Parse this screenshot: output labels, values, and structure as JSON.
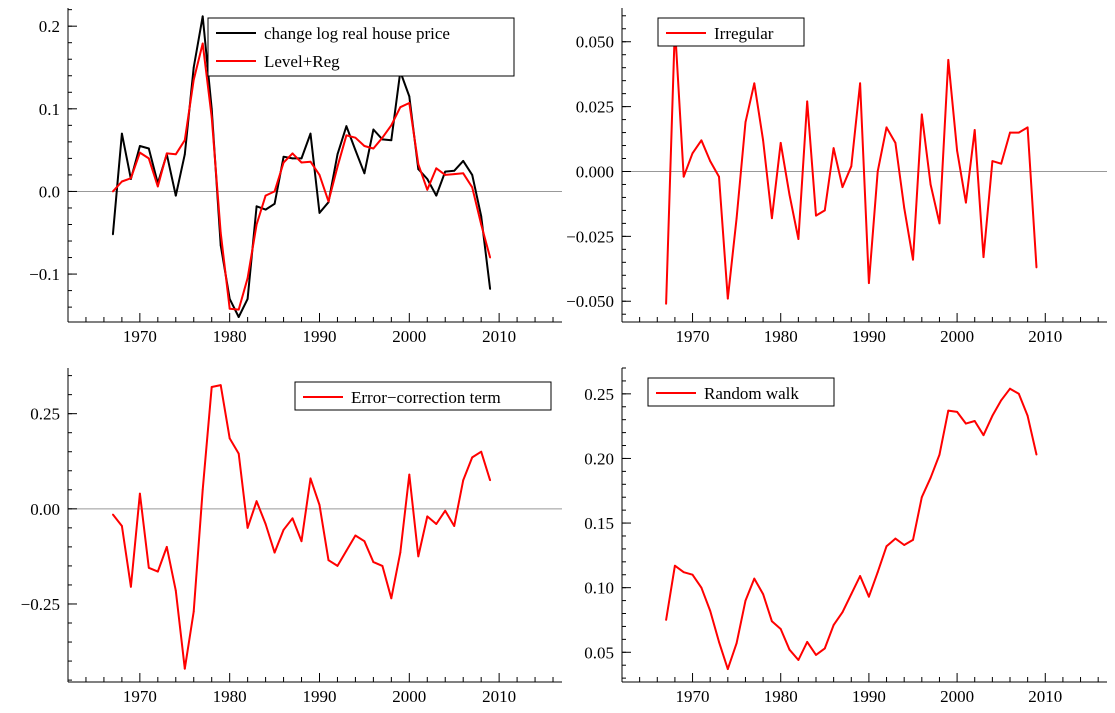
{
  "chart_data": [
    {
      "type": "line",
      "title": "",
      "xlabel": "",
      "ylabel": "",
      "xlim": [
        1962,
        2017
      ],
      "ylim": [
        -0.158,
        0.222
      ],
      "xticks": [
        1970,
        1980,
        1990,
        2000,
        2010
      ],
      "xtick_labels": [
        "1970",
        "1980",
        "1990",
        "2000",
        "2010"
      ],
      "yticks": [
        -0.1,
        0.0,
        0.1,
        0.2
      ],
      "ytick_labels": [
        "−0.1",
        "0.0",
        "0.1",
        "0.2"
      ],
      "zero_line": true,
      "grid": false,
      "legend_position": "top-right",
      "x": [
        1967,
        1968,
        1969,
        1970,
        1971,
        1972,
        1973,
        1974,
        1975,
        1976,
        1977,
        1978,
        1979,
        1980,
        1981,
        1982,
        1983,
        1984,
        1985,
        1986,
        1987,
        1988,
        1989,
        1990,
        1991,
        1992,
        1993,
        1994,
        1995,
        1996,
        1997,
        1998,
        1999,
        2000,
        2001,
        2002,
        2003,
        2004,
        2005,
        2006,
        2007,
        2008,
        2009
      ],
      "series": [
        {
          "name": "change log real house price",
          "color": "#000000",
          "values": [
            -0.052,
            0.07,
            0.015,
            0.055,
            0.052,
            0.01,
            0.045,
            -0.005,
            0.045,
            0.15,
            0.212,
            0.1,
            -0.065,
            -0.13,
            -0.152,
            -0.13,
            -0.018,
            -0.022,
            -0.015,
            0.042,
            0.04,
            0.04,
            0.07,
            -0.026,
            -0.013,
            0.045,
            0.079,
            0.05,
            0.022,
            0.075,
            0.063,
            0.062,
            0.145,
            0.115,
            0.027,
            0.015,
            -0.005,
            0.024,
            0.025,
            0.037,
            0.02,
            -0.03,
            -0.118
          ]
        },
        {
          "name": "Level+Reg",
          "color": "#ff0000",
          "values": [
            0.0,
            0.012,
            0.016,
            0.047,
            0.04,
            0.006,
            0.046,
            0.045,
            0.062,
            0.135,
            0.179,
            0.09,
            -0.05,
            -0.142,
            -0.143,
            -0.105,
            -0.04,
            -0.005,
            0.0,
            0.035,
            0.046,
            0.035,
            0.036,
            0.02,
            -0.012,
            0.03,
            0.068,
            0.065,
            0.055,
            0.052,
            0.065,
            0.08,
            0.102,
            0.107,
            0.033,
            0.002,
            0.028,
            0.02,
            0.021,
            0.022,
            0.005,
            -0.04,
            -0.08
          ]
        }
      ]
    },
    {
      "type": "line",
      "title": "",
      "xlabel": "",
      "ylabel": "",
      "xlim": [
        1962,
        2017
      ],
      "ylim": [
        -0.058,
        0.063
      ],
      "xticks": [
        1970,
        1980,
        1990,
        2000,
        2010
      ],
      "xtick_labels": [
        "1970",
        "1980",
        "1990",
        "2000",
        "2010"
      ],
      "yticks": [
        -0.05,
        -0.025,
        0.0,
        0.025,
        0.05
      ],
      "ytick_labels": [
        "−0.050",
        "−0.025",
        "0.000",
        "0.025",
        "0.050"
      ],
      "zero_line": true,
      "grid": false,
      "legend_position": "top-left",
      "x": [
        1967,
        1968,
        1969,
        1970,
        1971,
        1972,
        1973,
        1974,
        1975,
        1976,
        1977,
        1978,
        1979,
        1980,
        1981,
        1982,
        1983,
        1984,
        1985,
        1986,
        1987,
        1988,
        1989,
        1990,
        1991,
        1992,
        1993,
        1994,
        1995,
        1996,
        1997,
        1998,
        1999,
        2000,
        2001,
        2002,
        2003,
        2004,
        2005,
        2006,
        2007,
        2008,
        2009
      ],
      "series": [
        {
          "name": "Irregular",
          "color": "#ff0000",
          "values": [
            -0.051,
            0.056,
            -0.002,
            0.007,
            0.012,
            0.004,
            -0.002,
            -0.049,
            -0.018,
            0.019,
            0.034,
            0.012,
            -0.018,
            0.011,
            -0.009,
            -0.026,
            0.027,
            -0.017,
            -0.015,
            0.009,
            -0.006,
            0.002,
            0.034,
            -0.043,
            0.0,
            0.017,
            0.011,
            -0.014,
            -0.034,
            0.022,
            -0.005,
            -0.02,
            0.043,
            0.008,
            -0.012,
            0.016,
            -0.033,
            0.004,
            0.003,
            0.015,
            0.015,
            0.017,
            -0.037
          ]
        }
      ]
    },
    {
      "type": "line",
      "title": "",
      "xlabel": "",
      "ylabel": "",
      "xlim": [
        1962,
        2017
      ],
      "ylim": [
        -0.455,
        0.37
      ],
      "xticks": [
        1970,
        1980,
        1990,
        2000,
        2010
      ],
      "xtick_labels": [
        "1970",
        "1980",
        "1990",
        "2000",
        "2010"
      ],
      "yticks": [
        -0.25,
        0.0,
        0.25
      ],
      "ytick_labels": [
        "−0.25",
        "0.00",
        "0.25"
      ],
      "zero_line": true,
      "grid": false,
      "legend_position": "top-right",
      "x": [
        1967,
        1968,
        1969,
        1970,
        1971,
        1972,
        1973,
        1974,
        1975,
        1976,
        1977,
        1978,
        1979,
        1980,
        1981,
        1982,
        1983,
        1984,
        1985,
        1986,
        1987,
        1988,
        1989,
        1990,
        1991,
        1992,
        1993,
        1994,
        1995,
        1996,
        1997,
        1998,
        1999,
        2000,
        2001,
        2002,
        2003,
        2004,
        2005,
        2006,
        2007,
        2008,
        2009
      ],
      "series": [
        {
          "name": "Error−correction term",
          "color": "#ff0000",
          "values": [
            -0.015,
            -0.045,
            -0.205,
            0.04,
            -0.155,
            -0.165,
            -0.1,
            -0.215,
            -0.42,
            -0.27,
            0.05,
            0.32,
            0.325,
            0.185,
            0.145,
            -0.05,
            0.02,
            -0.04,
            -0.115,
            -0.055,
            -0.025,
            -0.085,
            0.08,
            0.01,
            -0.135,
            -0.15,
            -0.11,
            -0.07,
            -0.085,
            -0.14,
            -0.15,
            -0.235,
            -0.115,
            0.09,
            -0.125,
            -0.02,
            -0.04,
            -0.005,
            -0.045,
            0.075,
            0.135,
            0.15,
            0.075
          ]
        }
      ]
    },
    {
      "type": "line",
      "title": "",
      "xlabel": "",
      "ylabel": "",
      "xlim": [
        1962,
        2017
      ],
      "ylim": [
        0.027,
        0.27
      ],
      "xticks": [
        1970,
        1980,
        1990,
        2000,
        2010
      ],
      "xtick_labels": [
        "1970",
        "1980",
        "1990",
        "2000",
        "2010"
      ],
      "yticks": [
        0.05,
        0.1,
        0.15,
        0.2,
        0.25
      ],
      "ytick_labels": [
        "0.05",
        "0.10",
        "0.15",
        "0.20",
        "0.25"
      ],
      "zero_line": false,
      "grid": false,
      "legend_position": "top-left",
      "x": [
        1967,
        1968,
        1969,
        1970,
        1971,
        1972,
        1973,
        1974,
        1975,
        1976,
        1977,
        1978,
        1979,
        1980,
        1981,
        1982,
        1983,
        1984,
        1985,
        1986,
        1987,
        1988,
        1989,
        1990,
        1991,
        1992,
        1993,
        1994,
        1995,
        1996,
        1997,
        1998,
        1999,
        2000,
        2001,
        2002,
        2003,
        2004,
        2005,
        2006,
        2007,
        2008,
        2009
      ],
      "series": [
        {
          "name": "Random walk",
          "color": "#ff0000",
          "values": [
            0.075,
            0.117,
            0.112,
            0.11,
            0.1,
            0.082,
            0.058,
            0.037,
            0.057,
            0.09,
            0.107,
            0.095,
            0.074,
            0.068,
            0.052,
            0.044,
            0.058,
            0.048,
            0.053,
            0.071,
            0.081,
            0.095,
            0.109,
            0.093,
            0.112,
            0.132,
            0.138,
            0.133,
            0.137,
            0.17,
            0.185,
            0.203,
            0.237,
            0.236,
            0.227,
            0.229,
            0.218,
            0.233,
            0.245,
            0.254,
            0.25,
            0.233,
            0.203
          ]
        }
      ]
    }
  ]
}
